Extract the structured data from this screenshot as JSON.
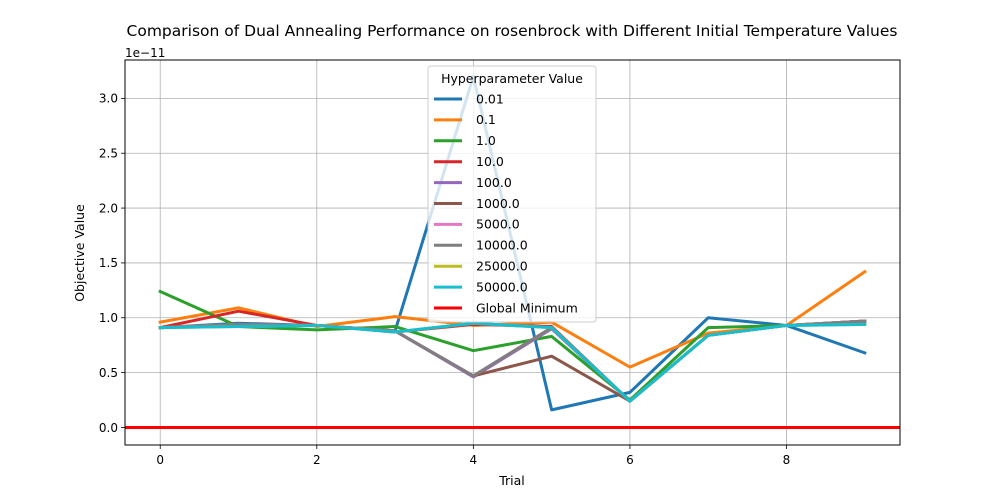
{
  "chart_data": {
    "type": "line",
    "title": "Comparison of Dual Annealing Performance on rosenbrock with Different Initial Temperature Values",
    "xlabel": "Trial",
    "ylabel": "Objective Value",
    "y_offset_label": "1e−11",
    "xlim": [
      -0.45,
      9.45
    ],
    "ylim": [
      -0.16,
      3.35
    ],
    "x_ticks": [
      0,
      2,
      4,
      6,
      8
    ],
    "y_ticks": [
      0.0,
      0.5,
      1.0,
      1.5,
      2.0,
      2.5,
      3.0
    ],
    "grid": true,
    "legend_title": "Hyperparameter Value",
    "legend_placement": "upper center",
    "x": [
      0,
      1,
      2,
      3,
      4,
      5,
      6,
      7,
      8,
      9
    ],
    "series": [
      {
        "name": "0.01",
        "color": "#1f77b4",
        "values": [
          0.91,
          0.95,
          0.93,
          0.88,
          3.2,
          0.16,
          0.32,
          1.0,
          0.93,
          0.68
        ]
      },
      {
        "name": "0.1",
        "color": "#ff7f0e",
        "values": [
          0.96,
          1.09,
          0.92,
          1.01,
          0.93,
          0.96,
          0.55,
          0.86,
          0.93,
          1.42
        ]
      },
      {
        "name": "1.0",
        "color": "#2ca02c",
        "values": [
          1.24,
          0.92,
          0.89,
          0.92,
          0.7,
          0.83,
          0.25,
          0.91,
          0.93,
          0.96
        ]
      },
      {
        "name": "10.0",
        "color": "#d62728",
        "values": [
          0.91,
          1.06,
          0.93,
          0.87,
          0.94,
          0.92,
          0.24,
          0.84,
          0.93,
          0.97
        ]
      },
      {
        "name": "100.0",
        "color": "#9467bd",
        "values": [
          0.91,
          0.94,
          0.93,
          0.88,
          0.46,
          0.9,
          0.24,
          0.84,
          0.93,
          0.97
        ]
      },
      {
        "name": "1000.0",
        "color": "#8c564b",
        "values": [
          0.91,
          0.94,
          0.93,
          0.88,
          0.47,
          0.65,
          0.24,
          0.84,
          0.93,
          0.97
        ]
      },
      {
        "name": "5000.0",
        "color": "#e377c2",
        "values": [
          0.91,
          0.94,
          0.93,
          0.88,
          0.47,
          0.91,
          0.24,
          0.84,
          0.93,
          0.97
        ]
      },
      {
        "name": "10000.0",
        "color": "#7f7f7f",
        "values": [
          0.91,
          0.94,
          0.93,
          0.88,
          0.47,
          0.91,
          0.24,
          0.84,
          0.93,
          0.97
        ]
      },
      {
        "name": "25000.0",
        "color": "#bcbd22",
        "values": [
          0.91,
          0.92,
          0.93,
          0.87,
          0.95,
          0.91,
          0.24,
          0.84,
          0.93,
          0.94
        ]
      },
      {
        "name": "50000.0",
        "color": "#17becf",
        "values": [
          0.91,
          0.92,
          0.93,
          0.87,
          0.95,
          0.91,
          0.24,
          0.84,
          0.93,
          0.94
        ]
      }
    ],
    "reference_line": {
      "name": "Global Minimum",
      "color": "#ff0000",
      "value": 0.0
    }
  }
}
